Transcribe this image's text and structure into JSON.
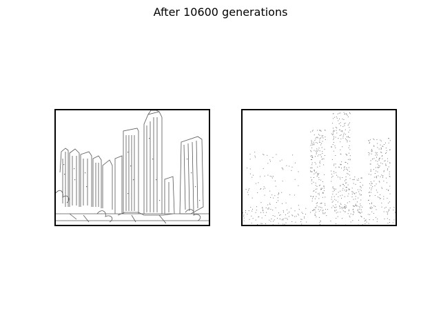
{
  "figure": {
    "title": "After 10600 generations"
  },
  "panels": [
    {
      "id": "left",
      "content": "edge-line drawing of a city skyline with skyscrapers (target image)"
    },
    {
      "id": "right",
      "content": "sparse stippled approximation of the same skyline (evolved image)"
    }
  ],
  "colors": {
    "background": "#ffffff",
    "frame": "#000000",
    "stroke": "#555555"
  }
}
